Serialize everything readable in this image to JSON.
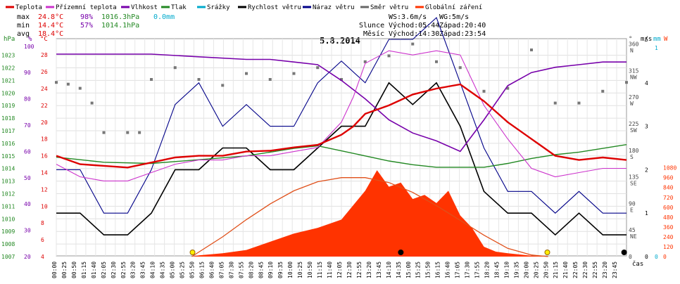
{
  "legend": [
    {
      "name": "Teplota",
      "color": "#dd0000"
    },
    {
      "name": "Přízemní teplota",
      "color": "#cc33cc"
    },
    {
      "name": "Vlhkost",
      "color": "#7700aa"
    },
    {
      "name": "Tlak",
      "color": "#228822"
    },
    {
      "name": "Srážky",
      "color": "#00aacc"
    },
    {
      "name": "Rychlost větru",
      "color": "#000000"
    },
    {
      "name": "Náraz větru",
      "color": "#000088"
    },
    {
      "name": "Směr větru",
      "color": "#666666"
    },
    {
      "name": "Globální záření",
      "color": "#ff3300"
    }
  ],
  "stats": {
    "max": {
      "label": "max",
      "temp": "24.8°C",
      "hum": "98%",
      "press": "1016.3hPa",
      "rain": "0.0mm"
    },
    "min": {
      "label": "min",
      "temp": "14.4°C",
      "hum": "57%",
      "press": "1014.1hPa"
    },
    "avg": {
      "label": "avg",
      "temp": "18.4°C"
    }
  },
  "info": {
    "ws": "WS:3.6m/s",
    "wg": "WG:5m/s",
    "slunce": "Slunce",
    "slunce_vychod": "Východ:05:44",
    "slunce_zapad": "Západ:20:40",
    "mesic": "Měsíc",
    "mesic_vychod": "Východ:14:30",
    "mesic_zapad": "Západ:23:54"
  },
  "chart_data": {
    "type": "line",
    "title": "5.8.2014",
    "xlabel": "čas",
    "x_ticks": [
      "00:00",
      "00:25",
      "00:50",
      "01:15",
      "01:40",
      "02:05",
      "02:30",
      "02:55",
      "03:20",
      "03:45",
      "04:10",
      "04:35",
      "05:00",
      "05:25",
      "05:50",
      "06:15",
      "06:40",
      "07:05",
      "07:30",
      "07:55",
      "08:20",
      "08:45",
      "09:10",
      "09:35",
      "10:00",
      "10:25",
      "10:50",
      "11:15",
      "11:40",
      "12:05",
      "12:30",
      "12:55",
      "13:20",
      "13:45",
      "14:10",
      "14:35",
      "15:00",
      "15:25",
      "15:50",
      "16:15",
      "16:40",
      "17:05",
      "17:30",
      "17:55",
      "18:20",
      "18:45",
      "19:10",
      "19:35",
      "20:00",
      "20:25",
      "20:50",
      "21:15",
      "21:40",
      "22:05",
      "22:30",
      "22:55",
      "23:20",
      "23:45"
    ],
    "xlim_hours": [
      0,
      24
    ],
    "axes": {
      "pressure": {
        "unit": "hPa",
        "ticks": [
          1007,
          1008,
          1009,
          1010,
          1011,
          1012,
          1013,
          1014,
          1015,
          1016,
          1017,
          1018,
          1019,
          1020,
          1021,
          1022,
          1023
        ],
        "color": "#228822"
      },
      "humidity": {
        "unit": "%",
        "ticks": [
          20,
          30,
          40,
          50,
          60,
          70,
          80,
          90,
          100
        ],
        "color": "#7700aa"
      },
      "temperature": {
        "unit": "°C",
        "ticks": [
          4,
          6,
          8,
          10,
          12,
          14,
          16,
          18,
          20,
          22,
          24,
          26,
          28
        ],
        "color": "#dd0000"
      },
      "wind_dir": {
        "unit": "°",
        "ticks": [
          "0",
          "45 NE",
          "90 E",
          "135 SE",
          "180 S",
          "225 SW",
          "270 W",
          "315 NW",
          "360 N"
        ]
      },
      "wind_speed": {
        "unit": "m/s",
        "ticks": [
          0,
          1,
          2,
          3,
          4,
          5,
          6
        ]
      },
      "rain": {
        "unit": "mm",
        "ticks": [
          0,
          1
        ]
      },
      "radiation": {
        "unit": "W",
        "ticks": [
          0,
          120,
          240,
          360,
          480,
          600,
          720,
          840,
          960,
          1080
        ],
        "color": "#ff3300"
      }
    },
    "series": [
      {
        "name": "Teplota",
        "unit": "°C",
        "x": [
          0,
          1,
          2,
          3,
          4,
          5,
          6,
          7,
          8,
          9,
          10,
          11,
          12,
          12.5,
          13,
          14,
          15,
          16,
          17,
          18,
          19,
          20,
          21,
          22,
          23,
          24
        ],
        "y": [
          16,
          15,
          14.8,
          14.6,
          15.2,
          15.8,
          16,
          16,
          16.5,
          16.6,
          17,
          17.3,
          18.5,
          19.5,
          21,
          22,
          23.3,
          24,
          24.5,
          22.5,
          20,
          18,
          16,
          15.5,
          15.8,
          15.5
        ]
      },
      {
        "name": "Přízemní teplota",
        "unit": "°C",
        "x": [
          0,
          1,
          2,
          3,
          4,
          5,
          6,
          7,
          8,
          9,
          10,
          11,
          12,
          12.5,
          13,
          14,
          15,
          16,
          17,
          17.5,
          18,
          19,
          20,
          21,
          22,
          23,
          24
        ],
        "y": [
          15,
          13.5,
          13,
          13,
          14,
          15,
          15.5,
          15.5,
          16,
          16,
          16.5,
          17,
          20,
          23,
          27,
          28.5,
          28,
          28.5,
          28,
          25,
          22,
          18,
          14.5,
          13.5,
          14,
          14.5,
          14.5
        ]
      },
      {
        "name": "Vlhkost",
        "unit": "%",
        "x": [
          0,
          2,
          4,
          6,
          8,
          9,
          10,
          11,
          12,
          13,
          14,
          15,
          16,
          17,
          18,
          19,
          20,
          21,
          22,
          23,
          24
        ],
        "y": [
          97,
          97,
          97,
          96,
          95,
          95,
          94,
          93,
          87,
          80,
          72,
          67,
          64,
          60,
          72,
          85,
          90,
          92,
          93,
          94,
          94
        ]
      },
      {
        "name": "Tlak",
        "unit": "hPa",
        "x": [
          0,
          2,
          4,
          6,
          8,
          10,
          11,
          12,
          13,
          14,
          15,
          16,
          17,
          18,
          19,
          20,
          21,
          22,
          23,
          24
        ],
        "y": [
          1014.9,
          1014.5,
          1014.4,
          1014.7,
          1015,
          1015.6,
          1015.8,
          1015.4,
          1015,
          1014.6,
          1014.3,
          1014.1,
          1014.1,
          1014.1,
          1014.4,
          1014.8,
          1015.1,
          1015.3,
          1015.6,
          1015.9
        ]
      },
      {
        "name": "Rychlost větru",
        "unit": "m/s",
        "x": [
          0,
          1,
          2,
          3,
          4,
          5,
          6,
          7,
          8,
          9,
          10,
          11,
          12,
          13,
          14,
          15,
          16,
          17,
          18,
          19,
          20,
          21,
          22,
          23,
          24
        ],
        "y": [
          1,
          1,
          0.5,
          0.5,
          1,
          2,
          2,
          2.5,
          2.5,
          2,
          2,
          2.5,
          3,
          3,
          4,
          3.5,
          4,
          3,
          1.5,
          1,
          1,
          0.5,
          1,
          0.5,
          0.5
        ]
      },
      {
        "name": "Náraz větru",
        "unit": "m/s",
        "x": [
          0,
          1,
          2,
          3,
          4,
          5,
          6,
          7,
          8,
          9,
          10,
          11,
          12,
          13,
          14,
          15,
          16,
          17,
          18,
          19,
          20,
          21,
          22,
          23,
          24
        ],
        "y": [
          2,
          2,
          1,
          1,
          2,
          3.5,
          4,
          3,
          3.5,
          3,
          3,
          4,
          4.5,
          4,
          5,
          5,
          5.5,
          4,
          2.5,
          1.5,
          1.5,
          1,
          1.5,
          1,
          1
        ]
      },
      {
        "name": "Směr větru",
        "unit": "°",
        "x": [
          0,
          0.5,
          1,
          1.5,
          2,
          3,
          3.5,
          4,
          5,
          6,
          7,
          8,
          9,
          10,
          11,
          12,
          13,
          14,
          15,
          16,
          17,
          18,
          19,
          20,
          21,
          22,
          23,
          24
        ],
        "y": [
          295,
          292,
          285,
          260,
          210,
          210,
          210,
          300,
          320,
          300,
          290,
          310,
          300,
          310,
          320,
          300,
          330,
          340,
          360,
          330,
          320,
          280,
          285,
          350,
          260,
          260,
          280,
          295
        ]
      },
      {
        "name": "Globální záření",
        "unit": "W",
        "x": [
          0,
          5.7,
          6,
          7,
          8,
          9,
          10,
          11,
          12,
          13,
          13.5,
          14,
          14.5,
          15,
          15.5,
          16,
          16.5,
          17,
          17.5,
          18,
          18.5,
          19,
          20,
          20.7,
          24
        ],
        "y": [
          0,
          0,
          15,
          40,
          80,
          180,
          280,
          350,
          450,
          800,
          1050,
          850,
          900,
          700,
          750,
          650,
          800,
          500,
          350,
          120,
          60,
          40,
          10,
          0,
          0
        ]
      },
      {
        "name": "clear-sky radiation",
        "unit": "W",
        "x": [
          5.7,
          7,
          8,
          9,
          10,
          11,
          12,
          13,
          14,
          15,
          16,
          17,
          18,
          19,
          20,
          20.7
        ],
        "y": [
          0,
          240,
          450,
          640,
          800,
          910,
          960,
          960,
          900,
          780,
          620,
          440,
          260,
          100,
          20,
          0
        ]
      }
    ],
    "markers": {
      "sunrise": "05:44",
      "sunset": "20:40",
      "moonrise": "14:30",
      "moonset": "23:54"
    }
  }
}
